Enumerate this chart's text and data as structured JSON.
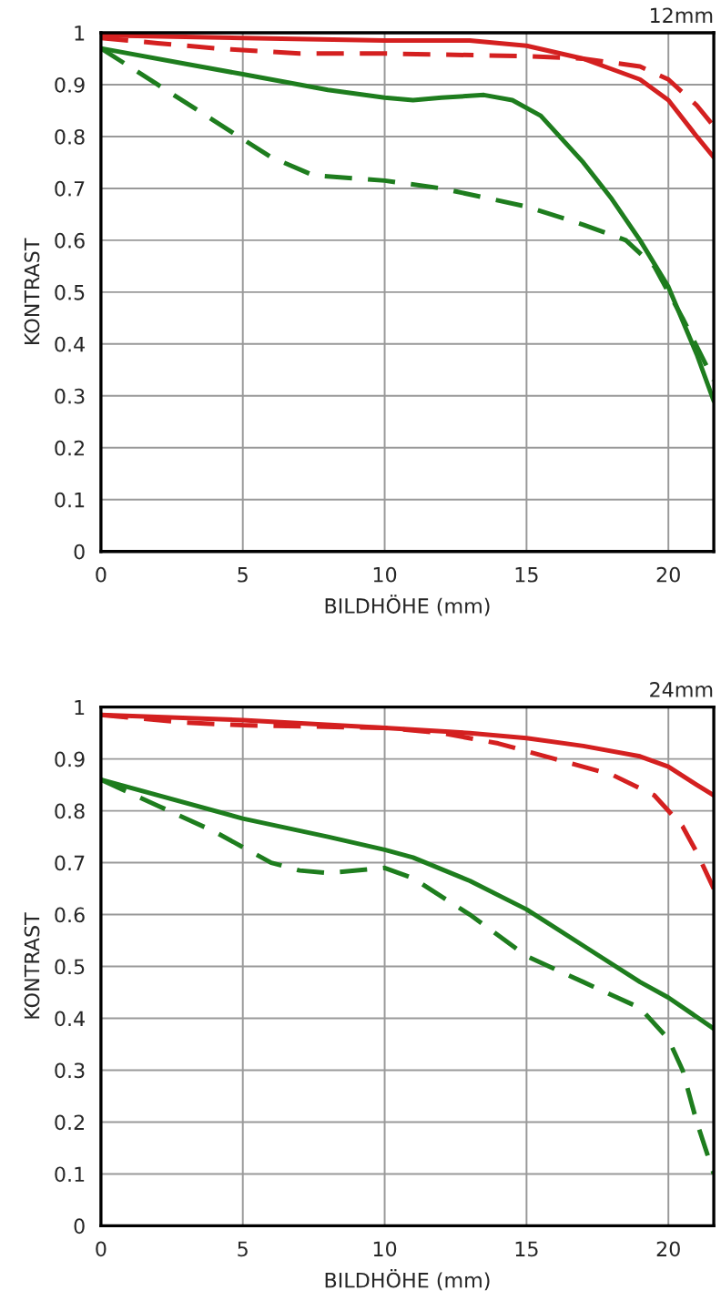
{
  "chart_data": [
    {
      "type": "line",
      "title": "12mm",
      "xlabel": "BILDHÖHE (mm)",
      "ylabel": "KONTRAST",
      "xlim": [
        0,
        21.6
      ],
      "xticks": [
        0,
        5,
        10,
        15,
        20
      ],
      "ylim": [
        0,
        1
      ],
      "yticks": [
        0,
        0.1,
        0.2,
        0.3,
        0.4,
        0.5,
        0.6,
        0.7,
        0.8,
        0.9,
        1
      ],
      "grid": true,
      "legend": false,
      "series": [
        {
          "color": "#d42020",
          "line_style": "solid",
          "x": [
            0,
            5,
            10,
            13,
            15,
            17,
            19,
            20,
            21,
            21.6
          ],
          "values": [
            0.995,
            0.99,
            0.985,
            0.985,
            0.975,
            0.95,
            0.91,
            0.87,
            0.8,
            0.76
          ]
        },
        {
          "color": "#d42020",
          "line_style": "dashed",
          "x": [
            0,
            2,
            4,
            7,
            10,
            15,
            17,
            19,
            20,
            21,
            21.6
          ],
          "values": [
            0.99,
            0.98,
            0.97,
            0.96,
            0.96,
            0.955,
            0.95,
            0.935,
            0.91,
            0.86,
            0.82
          ]
        },
        {
          "color": "#1e7d1e",
          "line_style": "solid",
          "x": [
            0,
            3,
            5,
            8,
            10,
            11,
            12,
            13.5,
            14.5,
            15.5,
            17,
            18,
            19,
            20,
            21,
            21.6
          ],
          "values": [
            0.97,
            0.94,
            0.92,
            0.89,
            0.875,
            0.87,
            0.875,
            0.88,
            0.87,
            0.84,
            0.75,
            0.68,
            0.6,
            0.51,
            0.38,
            0.29
          ]
        },
        {
          "color": "#1e7d1e",
          "line_style": "dashed",
          "x": [
            0,
            2,
            4,
            6,
            7.5,
            10,
            12,
            15,
            17,
            18.5,
            19.5,
            20.5,
            21.6
          ],
          "values": [
            0.97,
            0.9,
            0.83,
            0.76,
            0.725,
            0.715,
            0.7,
            0.665,
            0.63,
            0.6,
            0.55,
            0.45,
            0.33
          ]
        }
      ]
    },
    {
      "type": "line",
      "title": "24mm",
      "xlabel": "BILDHÖHE (mm)",
      "ylabel": "KONTRAST",
      "xlim": [
        0,
        21.6
      ],
      "xticks": [
        0,
        5,
        10,
        15,
        20
      ],
      "ylim": [
        0,
        1
      ],
      "yticks": [
        0,
        0.1,
        0.2,
        0.3,
        0.4,
        0.5,
        0.6,
        0.7,
        0.8,
        0.9,
        1
      ],
      "grid": true,
      "legend": false,
      "series": [
        {
          "color": "#d42020",
          "line_style": "solid",
          "x": [
            0,
            5,
            10,
            13,
            15,
            17,
            19,
            20,
            21,
            21.6
          ],
          "values": [
            0.985,
            0.975,
            0.96,
            0.95,
            0.94,
            0.925,
            0.905,
            0.885,
            0.85,
            0.83
          ]
        },
        {
          "color": "#d42020",
          "line_style": "dashed",
          "x": [
            0,
            3,
            5,
            10,
            12,
            14,
            16,
            18,
            19.5,
            20.5,
            21,
            21.6
          ],
          "values": [
            0.985,
            0.97,
            0.965,
            0.96,
            0.95,
            0.93,
            0.9,
            0.87,
            0.83,
            0.77,
            0.72,
            0.65
          ]
        },
        {
          "color": "#1e7d1e",
          "line_style": "solid",
          "x": [
            0,
            5,
            8,
            10,
            11,
            13,
            15,
            17,
            19,
            20,
            21.6
          ],
          "values": [
            0.86,
            0.785,
            0.75,
            0.725,
            0.71,
            0.665,
            0.61,
            0.54,
            0.47,
            0.44,
            0.38
          ]
        },
        {
          "color": "#1e7d1e",
          "line_style": "dashed",
          "x": [
            0,
            2,
            4,
            6,
            7,
            8,
            10,
            11,
            13,
            15,
            17,
            19,
            20,
            20.5,
            21,
            21.6
          ],
          "values": [
            0.86,
            0.81,
            0.76,
            0.7,
            0.685,
            0.68,
            0.69,
            0.67,
            0.6,
            0.52,
            0.47,
            0.42,
            0.36,
            0.3,
            0.2,
            0.1
          ]
        }
      ]
    }
  ]
}
